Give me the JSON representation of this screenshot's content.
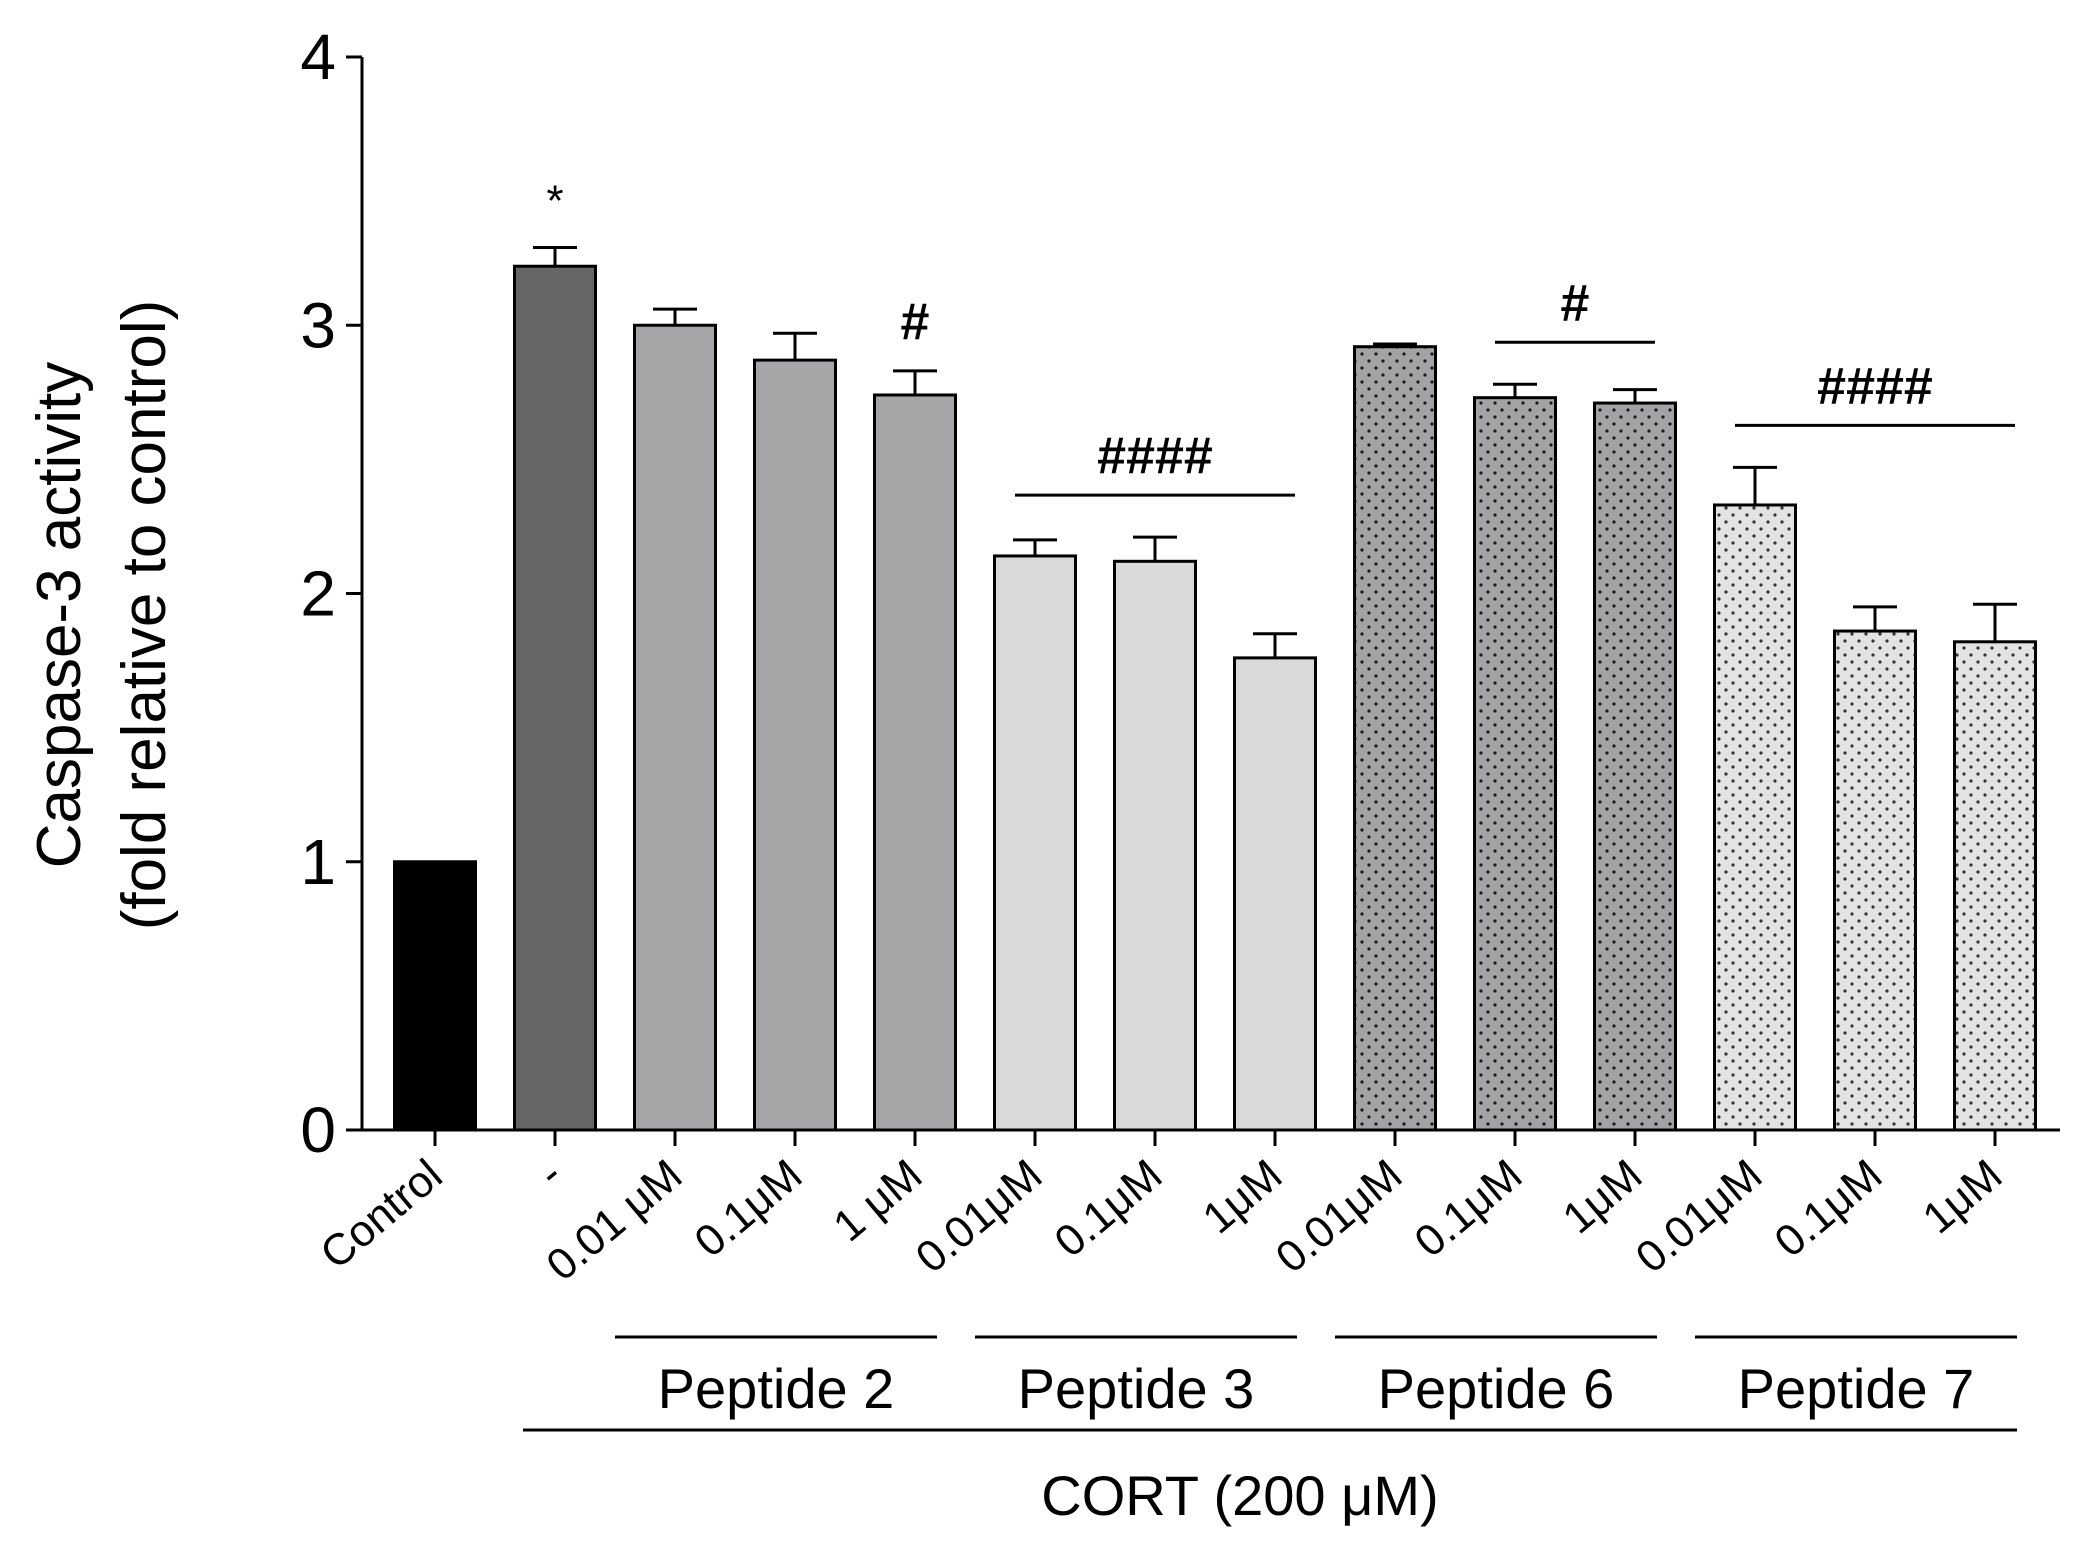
{
  "chart_data": {
    "type": "bar",
    "title": "",
    "ylabel_line1": "Caspase-3 activity",
    "ylabel_line2": "(fold relative to control)",
    "xlabel": "CORT (200 μM)",
    "ylim": [
      0,
      4
    ],
    "yticks": [
      "0",
      "1",
      "2",
      "3",
      "4"
    ],
    "categories": [
      "Control",
      "-",
      "0.01 μM",
      "0.1μM",
      "1 μM",
      "0.01μM",
      "0.1μM",
      "1μM",
      "0.01μM",
      "0.1μM",
      "1μM",
      "0.01μM",
      "0.1μM",
      "1μM"
    ],
    "values": [
      1.0,
      3.22,
      3.0,
      2.87,
      2.74,
      2.14,
      2.12,
      1.76,
      2.92,
      2.73,
      2.71,
      2.33,
      1.86,
      1.82
    ],
    "errors": [
      0.0,
      0.07,
      0.06,
      0.1,
      0.09,
      0.06,
      0.09,
      0.09,
      0.01,
      0.05,
      0.05,
      0.14,
      0.09,
      0.14
    ],
    "colors": [
      "#000000",
      "#666666",
      "#a6a6a8",
      "#a6a6a8",
      "#a6a6a8",
      "#d9d9d9",
      "#d9d9d9",
      "#d9d9d9",
      "#a3a3a5",
      "#a3a3a5",
      "#a3a3a5",
      "#e3e3e3",
      "#e3e3e3",
      "#e3e3e3"
    ],
    "dotted": [
      false,
      false,
      false,
      false,
      false,
      false,
      false,
      false,
      true,
      true,
      true,
      true,
      true,
      true
    ],
    "groups": [
      {
        "label": "Peptide 2",
        "start": 2,
        "end": 4
      },
      {
        "label": "Peptide 3",
        "start": 5,
        "end": 7
      },
      {
        "label": "Peptide 6",
        "start": 8,
        "end": 10
      },
      {
        "label": "Peptide 7",
        "start": 11,
        "end": 13
      }
    ],
    "cort_group": {
      "label": "CORT (200 μM)",
      "start": 1,
      "end": 13
    },
    "annotations": [
      {
        "text": "*",
        "bar": 1,
        "bracket": null
      },
      {
        "text": "#",
        "bar": 4,
        "bracket": null
      },
      {
        "text": "####",
        "bar": null,
        "bracket": [
          5,
          7
        ]
      },
      {
        "text": "#",
        "bar": null,
        "bracket": [
          9,
          10
        ]
      },
      {
        "text": "####",
        "bar": null,
        "bracket": [
          11,
          13
        ]
      }
    ]
  }
}
